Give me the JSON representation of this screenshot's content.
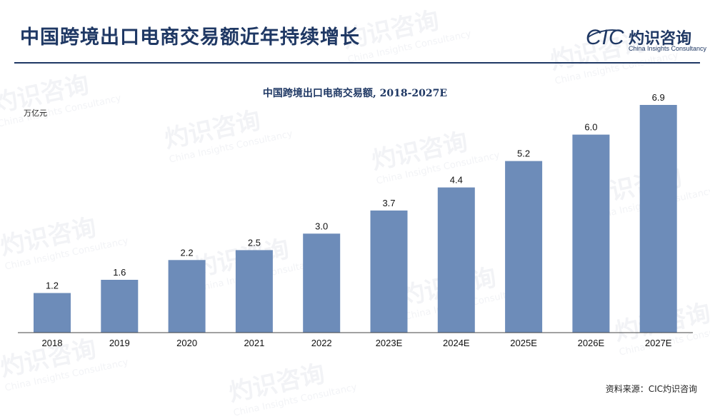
{
  "header": {
    "title": "中国跨境出口电商交易额近年持续增长",
    "logo_cic": "CIC",
    "logo_cn": "灼识咨询",
    "logo_en": "China Insights Consultancy"
  },
  "watermark": {
    "cn": "灼识咨询",
    "en": "China Insights Consultancy",
    "cic": "CIC"
  },
  "source": "资料来源：CIC灼识咨询",
  "colors": {
    "title": "#1f3864",
    "bar": "#6d8cb9",
    "axis": "#444444"
  },
  "chart_data": {
    "type": "bar",
    "title": "中国跨境出口电商交易额, 2018-2027E",
    "unit": "万亿元",
    "categories": [
      "2018",
      "2019",
      "2020",
      "2021",
      "2022",
      "2023E",
      "2024E",
      "2025E",
      "2026E",
      "2027E"
    ],
    "values": [
      1.2,
      1.6,
      2.2,
      2.5,
      3.0,
      3.7,
      4.4,
      5.2,
      6.0,
      6.9
    ],
    "value_labels": [
      "1.2",
      "1.6",
      "2.2",
      "2.5",
      "3.0",
      "3.7",
      "4.4",
      "5.2",
      "6.0",
      "6.9"
    ],
    "ylim": [
      0,
      6.9
    ],
    "grid": false,
    "legend": "none"
  }
}
